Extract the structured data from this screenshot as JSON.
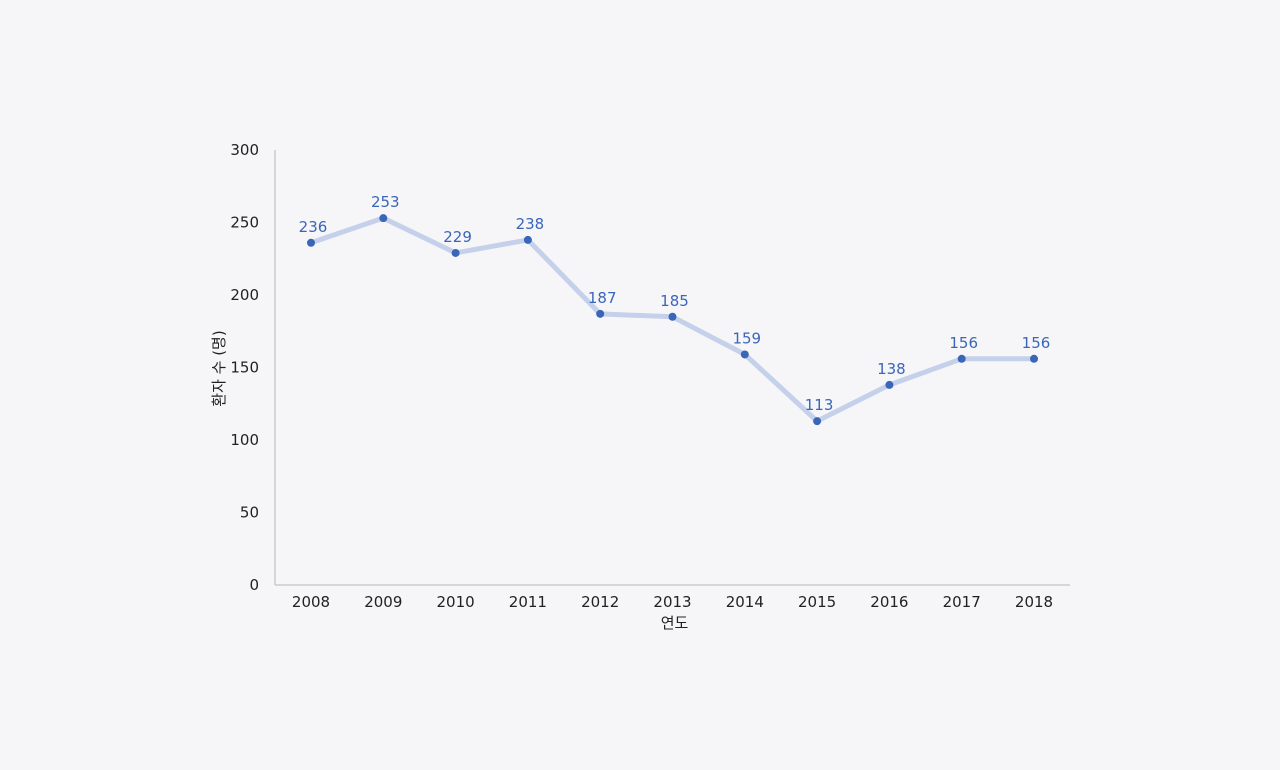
{
  "chart_data": {
    "type": "line",
    "title": "",
    "xlabel": "연도",
    "ylabel": "환자 수 (명)",
    "categories": [
      "2008",
      "2009",
      "2010",
      "2011",
      "2012",
      "2013",
      "2014",
      "2015",
      "2016",
      "2017",
      "2018"
    ],
    "series": [
      {
        "values": [
          236,
          253,
          229,
          238,
          187,
          185,
          159,
          113,
          138,
          156,
          156
        ],
        "data_labels": [
          "236",
          "253",
          "229",
          "238",
          "187",
          "185",
          "159",
          "113",
          "138",
          "156",
          "156"
        ]
      }
    ],
    "ylim": [
      0,
      300
    ],
    "y_ticks": [
      0,
      50,
      100,
      150,
      200,
      250,
      300
    ],
    "y_tick_labels": [
      "0",
      "50",
      "100",
      "150",
      "200",
      "250",
      "300"
    ],
    "grid": false,
    "legend": "none",
    "colors": {
      "line": "#c5d1ea",
      "marker": "#3a66b8",
      "data_label": "#3a66b8",
      "axis": "#cccccc",
      "text": "#222222",
      "background": "#f6f6f9"
    }
  }
}
